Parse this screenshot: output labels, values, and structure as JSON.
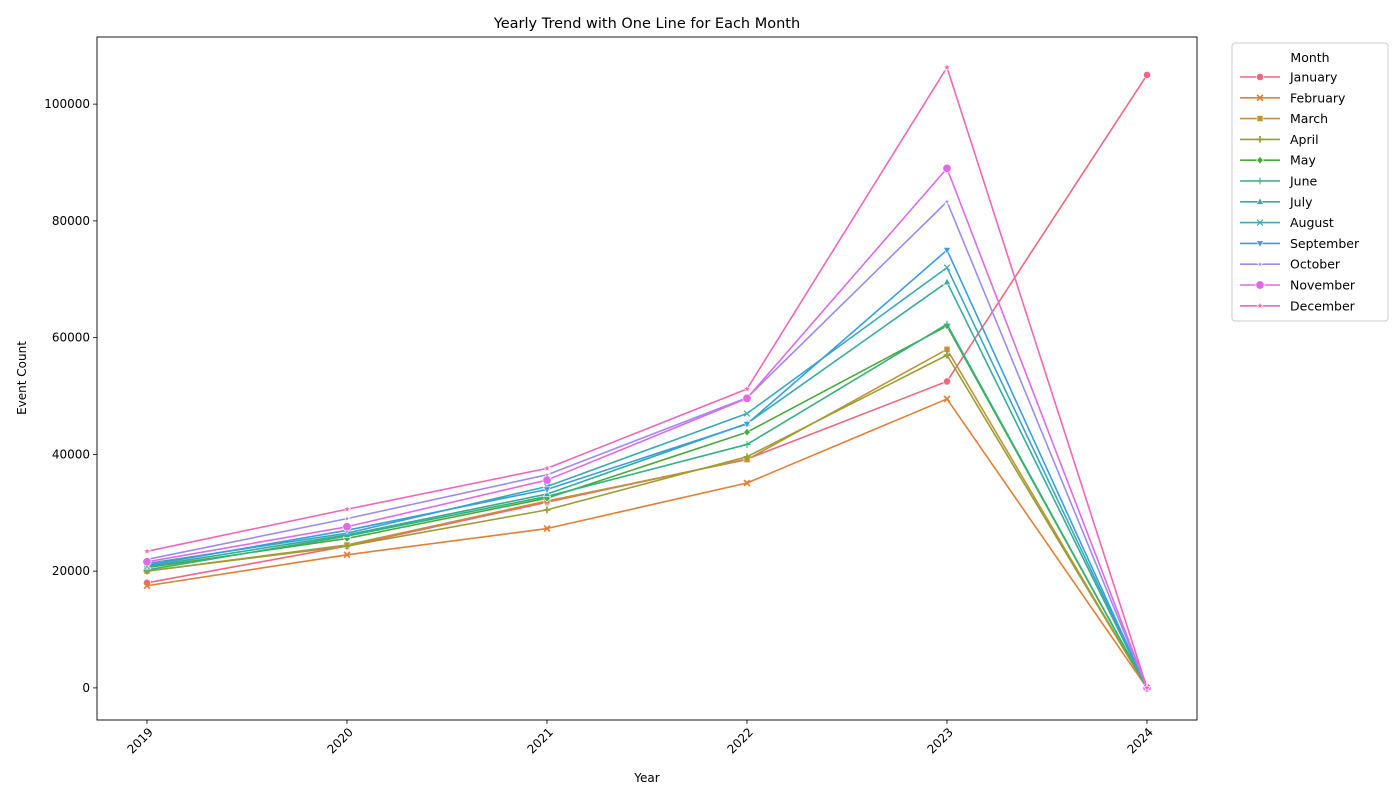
{
  "chart_data": {
    "type": "line",
    "title": "Yearly Trend with One Line for Each Month",
    "xlabel": "Year",
    "ylabel": "Event Count",
    "x": [
      2019,
      2020,
      2021,
      2022,
      2023,
      2024
    ],
    "xticks": [
      "2019",
      "2020",
      "2021",
      "2022",
      "2023",
      "2024"
    ],
    "ylim": [
      -5500,
      111500
    ],
    "yticks": [
      0,
      20000,
      40000,
      60000,
      80000,
      100000
    ],
    "ytick_labels": [
      "0",
      "20000",
      "40000",
      "60000",
      "80000",
      "100000"
    ],
    "grid": false,
    "legend": {
      "title": "Month",
      "placement": "outside top-right"
    },
    "series": [
      {
        "name": "January",
        "color": "#f0677e",
        "marker": "circle",
        "values": [
          18000,
          24300,
          31800,
          39200,
          52500,
          105000
        ]
      },
      {
        "name": "February",
        "color": "#e37f35",
        "marker": "x",
        "values": [
          17500,
          22800,
          27300,
          35100,
          49500,
          0
        ]
      },
      {
        "name": "March",
        "color": "#c1923a",
        "marker": "square",
        "values": [
          20000,
          24500,
          32000,
          39100,
          58000,
          0
        ]
      },
      {
        "name": "April",
        "color": "#97a031",
        "marker": "plus",
        "values": [
          20000,
          24300,
          30500,
          39600,
          57000,
          0
        ]
      },
      {
        "name": "May",
        "color": "#48aa3b",
        "marker": "diamond",
        "values": [
          20600,
          25600,
          32500,
          43800,
          62000,
          0
        ]
      },
      {
        "name": "June",
        "color": "#33b27d",
        "marker": "plus-thin",
        "values": [
          20200,
          26000,
          32800,
          41700,
          62300,
          0
        ]
      },
      {
        "name": "July",
        "color": "#34ad9c",
        "marker": "triangle-up",
        "values": [
          20800,
          26200,
          33200,
          45300,
          69500,
          0
        ]
      },
      {
        "name": "August",
        "color": "#39a9b8",
        "marker": "x-thin",
        "values": [
          21300,
          26500,
          34500,
          47000,
          72000,
          0
        ]
      },
      {
        "name": "September",
        "color": "#3a9de3",
        "marker": "triangle-down",
        "values": [
          21000,
          27000,
          34000,
          45200,
          75000,
          0
        ]
      },
      {
        "name": "October",
        "color": "#9d8bf0",
        "marker": "star-small",
        "values": [
          22000,
          29000,
          36500,
          49700,
          83300,
          0
        ]
      },
      {
        "name": "November",
        "color": "#df6ae8",
        "marker": "circle-large",
        "values": [
          21600,
          27600,
          35600,
          49600,
          89000,
          0
        ]
      },
      {
        "name": "December",
        "color": "#f465b8",
        "marker": "star",
        "values": [
          23400,
          30600,
          37600,
          51200,
          106300,
          0
        ]
      }
    ]
  }
}
